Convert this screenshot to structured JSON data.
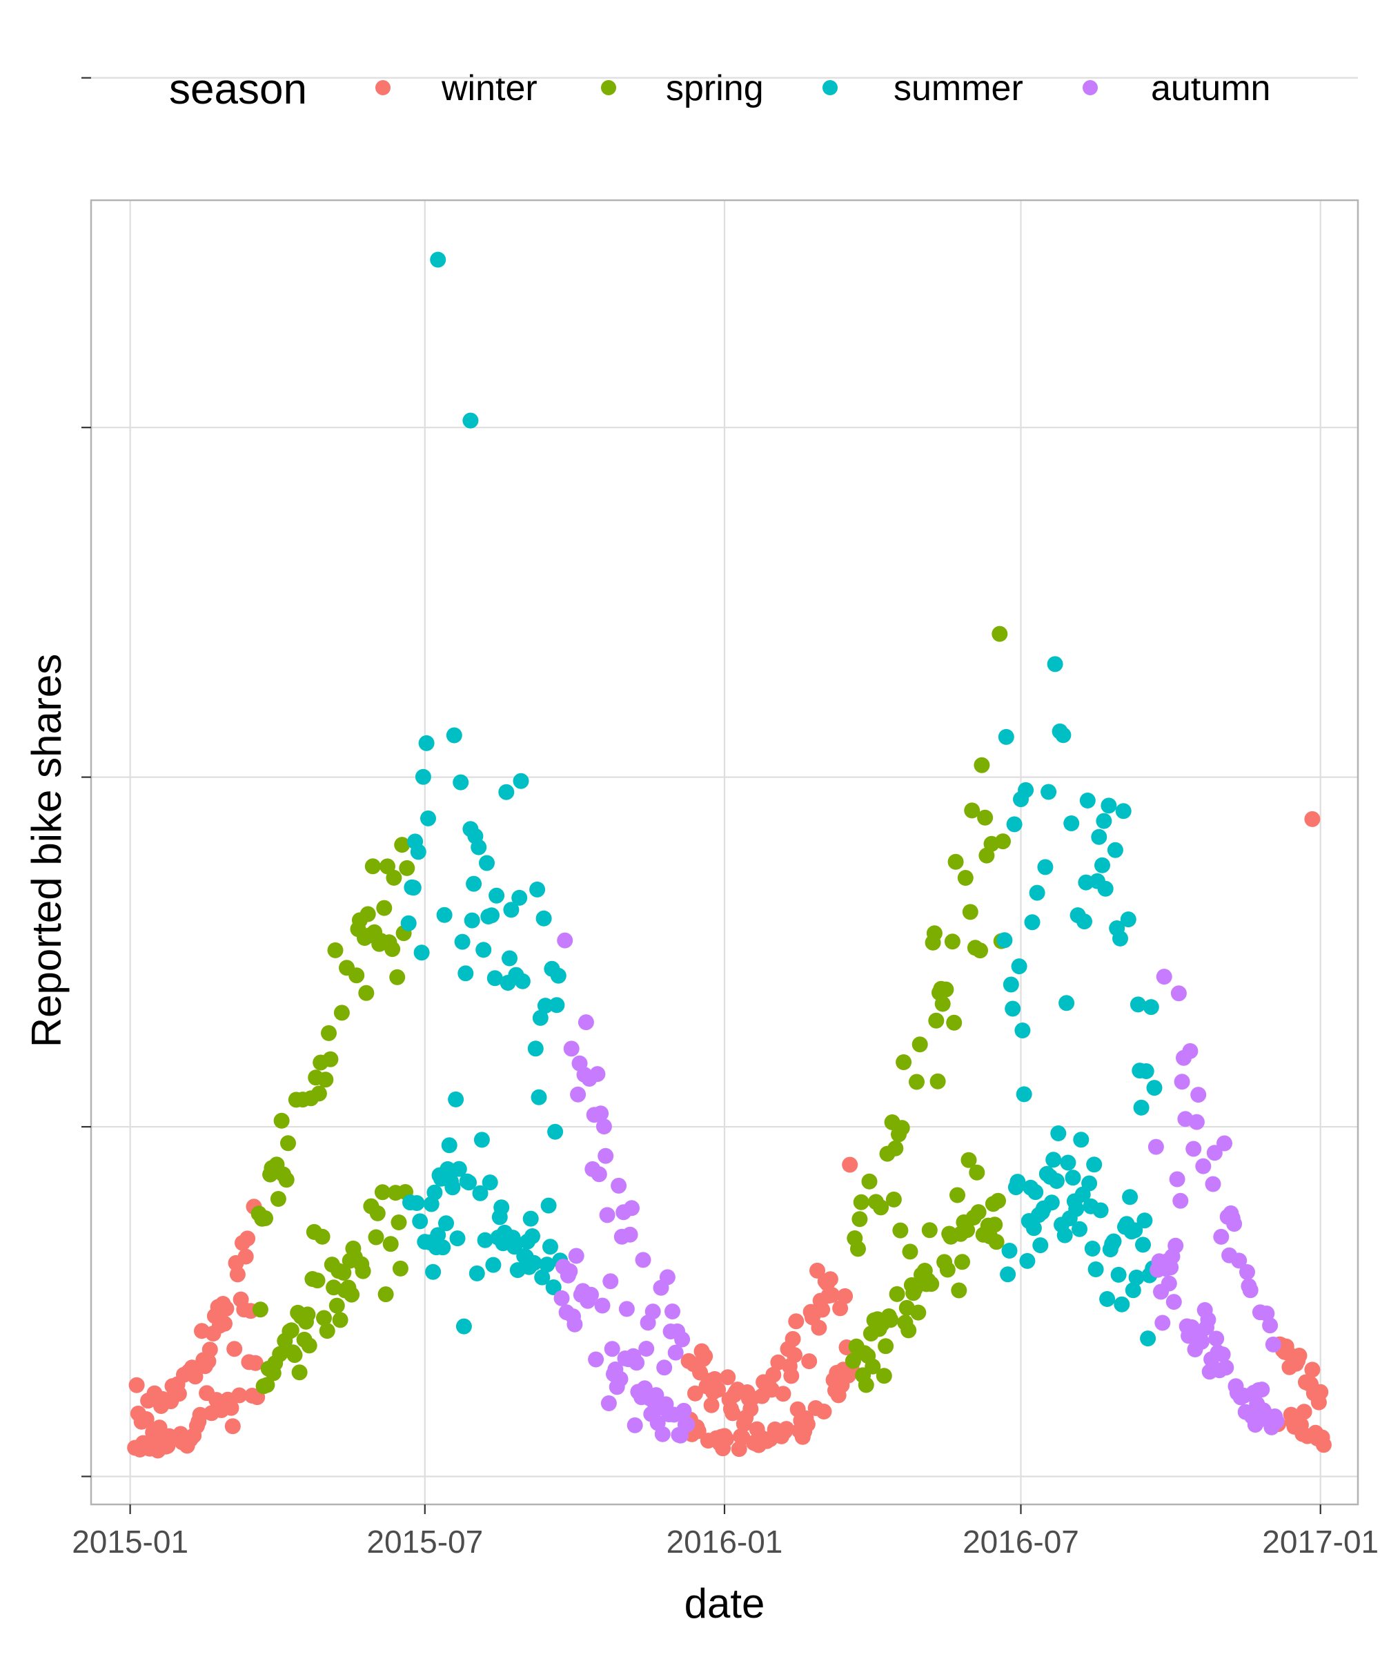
{
  "chart_data": {
    "type": "scatter",
    "title": "",
    "xlabel": "date",
    "ylabel": "Reported bike shares",
    "x_ticks": [
      "2015-01",
      "2015-07",
      "2016-01",
      "2016-07",
      "2017-01"
    ],
    "x_range": [
      "2014-12-08",
      "2017-01-24"
    ],
    "y_ticks": [
      0,
      10000,
      20000,
      30000,
      40000
    ],
    "y_tick_labels_visible": false,
    "ylim": [
      -800,
      36500
    ],
    "grid": true,
    "legend": {
      "title": "season",
      "position": "top",
      "entries": [
        {
          "name": "winter",
          "color": "#F8766D"
        },
        {
          "name": "spring",
          "color": "#7CAE00"
        },
        {
          "name": "summer",
          "color": "#00BFC4"
        },
        {
          "name": "autumn",
          "color": "#C77CFF"
        }
      ]
    },
    "series": [
      {
        "name": "winter",
        "color": "#F8766D",
        "segments": [
          {
            "start": "2015-01-04",
            "end": "2015-03-20"
          },
          {
            "start": "2015-12-10",
            "end": "2016-03-19"
          },
          {
            "start": "2016-12-06",
            "end": "2017-01-03"
          }
        ]
      },
      {
        "name": "spring",
        "color": "#7CAE00",
        "segments": [
          {
            "start": "2015-03-21",
            "end": "2015-06-20"
          },
          {
            "start": "2016-03-20",
            "end": "2016-06-20"
          }
        ]
      },
      {
        "name": "summer",
        "color": "#00BFC4",
        "segments": [
          {
            "start": "2015-06-21",
            "end": "2015-09-22"
          },
          {
            "start": "2016-06-21",
            "end": "2016-09-21"
          }
        ]
      },
      {
        "name": "autumn",
        "color": "#C77CFF",
        "segments": [
          {
            "start": "2015-09-23",
            "end": "2015-12-09"
          },
          {
            "start": "2016-09-22",
            "end": "2016-12-05"
          }
        ]
      }
    ],
    "outliers": [
      {
        "date": "2015-07-09",
        "value": 34800,
        "season": "summer"
      },
      {
        "date": "2015-07-29",
        "value": 30200,
        "season": "summer"
      },
      {
        "date": "2016-12-27",
        "value": 18800,
        "season": "winter"
      }
    ],
    "point_count": 731
  }
}
